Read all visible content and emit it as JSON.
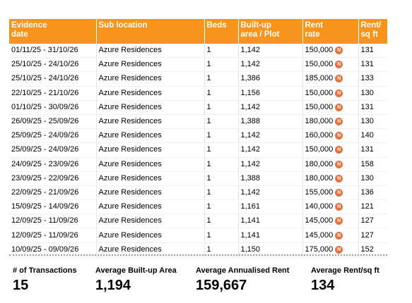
{
  "table": {
    "headers": {
      "evidence_date": [
        "Evidence",
        "date"
      ],
      "sub_location": [
        "Sub location"
      ],
      "beds": [
        "Beds"
      ],
      "area": [
        "Built-up",
        "area / Plot"
      ],
      "rent": [
        "Rent",
        "rate"
      ],
      "rent_sqft": [
        "Rent/",
        "sq ft"
      ]
    },
    "badge_letter": "N",
    "badge_color": "#e8703a",
    "header_color": "#f7941d",
    "rows": [
      {
        "date": "01/11/25 - 31/10/26",
        "location": "Azure Residences",
        "beds": "1",
        "area": "1,142",
        "rent": "150,000",
        "per_sqft": "131"
      },
      {
        "date": "25/10/25 - 24/10/26",
        "location": "Azure Residences",
        "beds": "1",
        "area": "1,142",
        "rent": "150,000",
        "per_sqft": "131"
      },
      {
        "date": "25/10/25 - 24/10/26",
        "location": "Azure Residences",
        "beds": "1",
        "area": "1,386",
        "rent": "185,000",
        "per_sqft": "133"
      },
      {
        "date": "22/10/25 - 21/10/26",
        "location": "Azure Residences",
        "beds": "1",
        "area": "1,156",
        "rent": "150,000",
        "per_sqft": "130"
      },
      {
        "date": "01/10/25 - 30/09/26",
        "location": "Azure Residences",
        "beds": "1",
        "area": "1,142",
        "rent": "150,000",
        "per_sqft": "131"
      },
      {
        "date": "26/09/25 - 25/09/26",
        "location": "Azure Residences",
        "beds": "1",
        "area": "1,388",
        "rent": "180,000",
        "per_sqft": "130"
      },
      {
        "date": "25/09/25 - 24/09/26",
        "location": "Azure Residences",
        "beds": "1",
        "area": "1,142",
        "rent": "160,000",
        "per_sqft": "140"
      },
      {
        "date": "25/09/25 - 24/09/26",
        "location": "Azure Residences",
        "beds": "1",
        "area": "1,142",
        "rent": "150,000",
        "per_sqft": "131"
      },
      {
        "date": "24/09/25 - 23/09/26",
        "location": "Azure Residences",
        "beds": "1",
        "area": "1,142",
        "rent": "180,000",
        "per_sqft": "158"
      },
      {
        "date": "23/09/25 - 22/09/26",
        "location": "Azure Residences",
        "beds": "1",
        "area": "1,388",
        "rent": "180,000",
        "per_sqft": "130"
      },
      {
        "date": "22/09/25 - 21/09/26",
        "location": "Azure Residences",
        "beds": "1",
        "area": "1,142",
        "rent": "155,000",
        "per_sqft": "136"
      },
      {
        "date": "15/09/25 - 14/09/26",
        "location": "Azure Residences",
        "beds": "1",
        "area": "1,161",
        "rent": "140,000",
        "per_sqft": "121"
      },
      {
        "date": "12/09/25 - 11/09/26",
        "location": "Azure Residences",
        "beds": "1",
        "area": "1,141",
        "rent": "145,000",
        "per_sqft": "127"
      },
      {
        "date": "12/09/25 - 11/09/26",
        "location": "Azure Residences",
        "beds": "1",
        "area": "1,141",
        "rent": "145,000",
        "per_sqft": "127"
      },
      {
        "date": "10/09/25 - 09/09/26",
        "location": "Azure Residences",
        "beds": "1",
        "area": "1,150",
        "rent": "175,000",
        "per_sqft": "152"
      }
    ]
  },
  "summary": [
    {
      "label": "# of Transactions",
      "value": "15"
    },
    {
      "label": "Average Built-up Area",
      "value": "1,194"
    },
    {
      "label": "Average Annualised Rent",
      "value": "159,667"
    },
    {
      "label": "Average Rent/sq ft",
      "value": "134"
    }
  ]
}
